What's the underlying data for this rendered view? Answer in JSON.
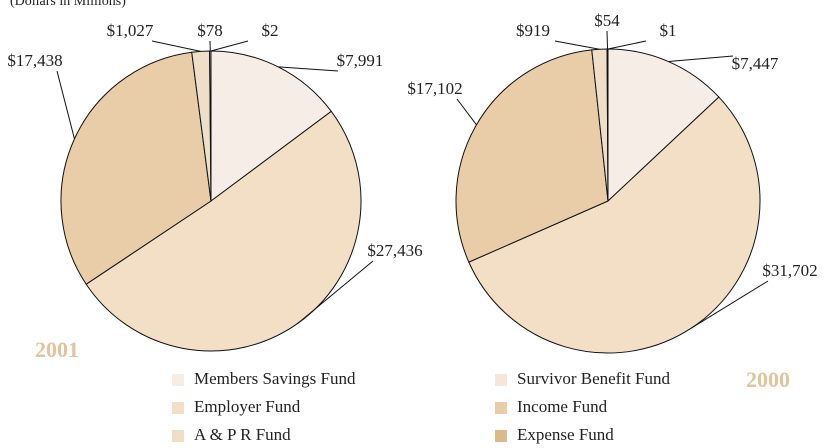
{
  "subtitle": "(Dollars in Millions)",
  "legend": {
    "categories": [
      "Members Savings Fund",
      "Survivor Benefit Fund",
      "Employer Fund",
      "Income Fund",
      "A & P R Fund",
      "Expense Fund"
    ],
    "colors": [
      "#f6eee6",
      "#f4e6da",
      "#f2dfc6",
      "#e8cda8",
      "#efdfc8",
      "#dcb88a"
    ]
  },
  "chart_data": [
    {
      "type": "pie",
      "title": "2001",
      "values": [
        7991,
        78,
        27436,
        17438,
        1027,
        2
      ],
      "value_labels": [
        "$7,991",
        "$78",
        "$27,436",
        "$17,438",
        "$1,027",
        "$2"
      ]
    },
    {
      "type": "pie",
      "title": "2000",
      "values": [
        7447,
        54,
        31702,
        17102,
        919,
        1
      ],
      "value_labels": [
        "$7,447",
        "$54",
        "$31,702",
        "$17,102",
        "$919",
        "$1"
      ]
    }
  ]
}
